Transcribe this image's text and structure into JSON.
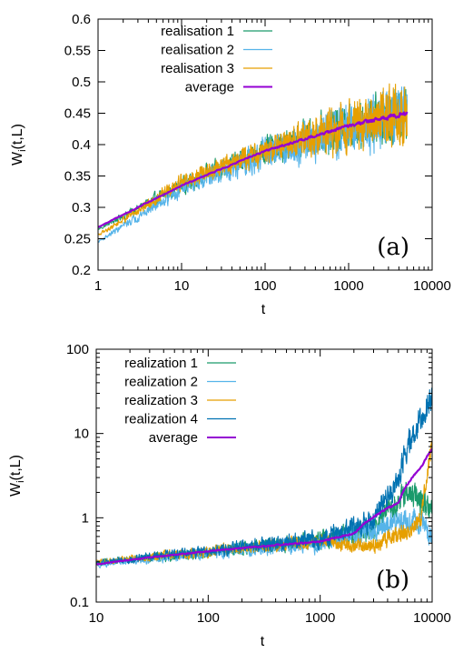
{
  "chart_data": [
    {
      "type": "line",
      "panel_label": "(a)",
      "xlabel": "t",
      "ylabel_main": "W",
      "ylabel_sub": "i",
      "ylabel_rest": "(t,L)",
      "xscale": "log",
      "yscale": "linear",
      "xlim": [
        1,
        10000
      ],
      "ylim": [
        0.2,
        0.6
      ],
      "x_ticks": [
        1,
        10,
        100,
        1000,
        10000
      ],
      "x_tick_labels": [
        "1",
        "10",
        "100",
        "1000",
        "10000"
      ],
      "y_ticks": [
        0.2,
        0.25,
        0.3,
        0.35,
        0.4,
        0.45,
        0.5,
        0.55,
        0.6
      ],
      "y_tick_labels": [
        "0.2",
        "0.25",
        "0.3",
        "0.35",
        "0.4",
        "0.45",
        "0.5",
        "0.55",
        "0.6"
      ],
      "legend_position": "top-left",
      "series": [
        {
          "name": "realisation 1",
          "color": "#1a9a6b",
          "t_end": 5000,
          "kind": "noisy",
          "trend": [
            [
              1,
              0.265
            ],
            [
              10,
              0.335
            ],
            [
              100,
              0.39
            ],
            [
              1000,
              0.43
            ],
            [
              5000,
              0.455
            ]
          ],
          "amp_log": [
            [
              0,
              0.004
            ],
            [
              1,
              0.02
            ],
            [
              2,
              0.03
            ],
            [
              3,
              0.055
            ],
            [
              3.7,
              0.07
            ]
          ]
        },
        {
          "name": "realisation 2",
          "color": "#56b4e9",
          "t_end": 5000,
          "kind": "noisy",
          "trend": [
            [
              1,
              0.245
            ],
            [
              10,
              0.33
            ],
            [
              100,
              0.385
            ],
            [
              1000,
              0.425
            ],
            [
              5000,
              0.45
            ]
          ],
          "amp_log": [
            [
              0,
              0.004
            ],
            [
              1,
              0.02
            ],
            [
              2,
              0.035
            ],
            [
              3,
              0.06
            ],
            [
              3.7,
              0.075
            ]
          ]
        },
        {
          "name": "realisation 3",
          "color": "#e69f00",
          "t_end": 5000,
          "kind": "noisy",
          "trend": [
            [
              1,
              0.255
            ],
            [
              10,
              0.34
            ],
            [
              100,
              0.39
            ],
            [
              1000,
              0.43
            ],
            [
              5000,
              0.45
            ]
          ],
          "amp_log": [
            [
              0,
              0.004
            ],
            [
              1,
              0.02
            ],
            [
              2,
              0.03
            ],
            [
              3,
              0.06
            ],
            [
              3.7,
              0.07
            ]
          ]
        },
        {
          "name": "average",
          "color": "#9400d3",
          "t_end": 5000,
          "kind": "average",
          "trend": [
            [
              1,
              0.268
            ],
            [
              10,
              0.335
            ],
            [
              100,
              0.39
            ],
            [
              1000,
              0.43
            ],
            [
              5000,
              0.45
            ]
          ],
          "amp_log": [
            [
              0,
              0.001
            ],
            [
              2,
              0.002
            ],
            [
              3,
              0.004
            ],
            [
              3.7,
              0.006
            ]
          ]
        }
      ]
    },
    {
      "type": "line",
      "panel_label": "(b)",
      "xlabel": "t",
      "ylabel_main": "W",
      "ylabel_sub": "i",
      "ylabel_rest": "(t,L)",
      "xscale": "log",
      "yscale": "log",
      "xlim": [
        10,
        10000
      ],
      "ylim": [
        0.1,
        100
      ],
      "x_ticks": [
        10,
        100,
        1000,
        10000
      ],
      "x_tick_labels": [
        "10",
        "100",
        "1000",
        "10000"
      ],
      "y_ticks": [
        0.1,
        1,
        10,
        100
      ],
      "y_tick_labels": [
        "0.1",
        "1",
        "10",
        "100"
      ],
      "legend_position": "top-left",
      "series": [
        {
          "name": "realization 1",
          "color": "#1a9a6b",
          "t_end": 10000,
          "kind": "noisy",
          "trend": [
            [
              10,
              0.29
            ],
            [
              100,
              0.38
            ],
            [
              1000,
              0.55
            ],
            [
              3000,
              0.7
            ],
            [
              6000,
              1.9
            ],
            [
              8000,
              1.6
            ],
            [
              10000,
              1.3
            ]
          ],
          "amp_log": [
            [
              1,
              0.03
            ],
            [
              2,
              0.05
            ],
            [
              3,
              0.08
            ],
            [
              4,
              0.12
            ]
          ]
        },
        {
          "name": "realization 2",
          "color": "#56b4e9",
          "t_end": 10000,
          "kind": "noisy",
          "trend": [
            [
              10,
              0.28
            ],
            [
              100,
              0.38
            ],
            [
              1000,
              0.5
            ],
            [
              3000,
              0.7
            ],
            [
              6000,
              0.95
            ],
            [
              8000,
              0.9
            ],
            [
              10000,
              0.55
            ]
          ],
          "amp_log": [
            [
              1,
              0.03
            ],
            [
              2,
              0.05
            ],
            [
              3,
              0.08
            ],
            [
              4,
              0.1
            ]
          ]
        },
        {
          "name": "realization 3",
          "color": "#e69f00",
          "t_end": 10000,
          "kind": "noisy",
          "trend": [
            [
              10,
              0.3
            ],
            [
              100,
              0.4
            ],
            [
              1000,
              0.52
            ],
            [
              3000,
              0.45
            ],
            [
              6000,
              0.7
            ],
            [
              8000,
              1.0
            ],
            [
              9000,
              3.0
            ],
            [
              10000,
              7.5
            ]
          ],
          "amp_log": [
            [
              1,
              0.03
            ],
            [
              2,
              0.05
            ],
            [
              3,
              0.06
            ],
            [
              4,
              0.08
            ]
          ]
        },
        {
          "name": "realization 4",
          "color": "#0072b2",
          "t_end": 10000,
          "kind": "noisy",
          "trend": [
            [
              10,
              0.29
            ],
            [
              100,
              0.4
            ],
            [
              1000,
              0.55
            ],
            [
              3000,
              0.9
            ],
            [
              5000,
              2.5
            ],
            [
              7000,
              10
            ],
            [
              9000,
              22
            ],
            [
              10000,
              28
            ]
          ],
          "amp_log": [
            [
              1,
              0.03
            ],
            [
              2,
              0.05
            ],
            [
              3,
              0.08
            ],
            [
              4,
              0.12
            ]
          ]
        },
        {
          "name": "average",
          "color": "#9400d3",
          "t_end": 10000,
          "kind": "average",
          "trend": [
            [
              10,
              0.28
            ],
            [
              100,
              0.4
            ],
            [
              1000,
              0.52
            ],
            [
              2000,
              0.65
            ],
            [
              5000,
              1.5
            ],
            [
              8000,
              4.0
            ],
            [
              10000,
              6.5
            ]
          ],
          "amp_log": [
            [
              1,
              0.003
            ],
            [
              4,
              0.008
            ]
          ]
        }
      ]
    }
  ]
}
